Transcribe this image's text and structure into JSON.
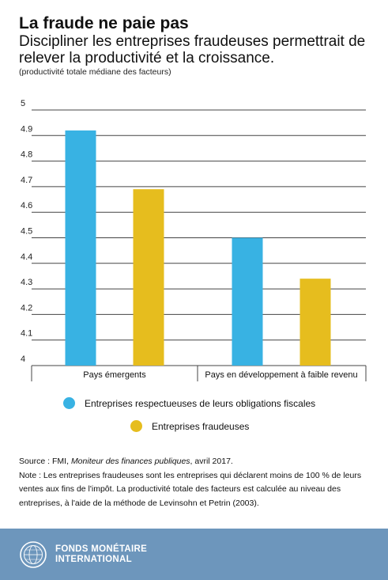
{
  "title": "La fraude ne paie pas",
  "subtitle": "Discipliner les entreprises fraudeuses permettrait de relever la productivité et la croissance.",
  "y_axis_note": "(productivité totale médiane des facteurs)",
  "chart_data": {
    "type": "bar",
    "categories": [
      "Pays émergents",
      "Pays en développement à faible revenu"
    ],
    "series": [
      {
        "name": "Entreprises respectueuses de leurs obligations fiscales",
        "values": [
          4.92,
          4.5
        ],
        "color": "#38b2e3"
      },
      {
        "name": "Entreprises fraudeuses",
        "values": [
          4.69,
          4.34
        ],
        "color": "#e6bd1e"
      }
    ],
    "ylim": [
      4,
      5
    ],
    "yticks": [
      "4",
      "4.1",
      "4.2",
      "4.3",
      "4.4",
      "4.5",
      "4.6",
      "4.7",
      "4.8",
      "4.9",
      "5"
    ],
    "grid": true,
    "legend_position": "bottom"
  },
  "source": {
    "prefix": "Source : FMI, ",
    "publication": "Moniteur des finances publiques",
    "suffix": ", avril 2017.",
    "note": "Note : Les entreprises fraudeuses sont les entreprises qui déclarent moins de 100 % de leurs ventes aux fins de l'impôt. La productivité totale des facteurs est calculée au niveau des entreprises, à l'aide de la méthode de Levinsohn et Petrin (2003)."
  },
  "footer": {
    "org_line1": "FONDS MONÉTAIRE",
    "org_line2": "INTERNATIONAL",
    "logo_icon": "imf-seal-icon",
    "background": "#6d96bc"
  }
}
